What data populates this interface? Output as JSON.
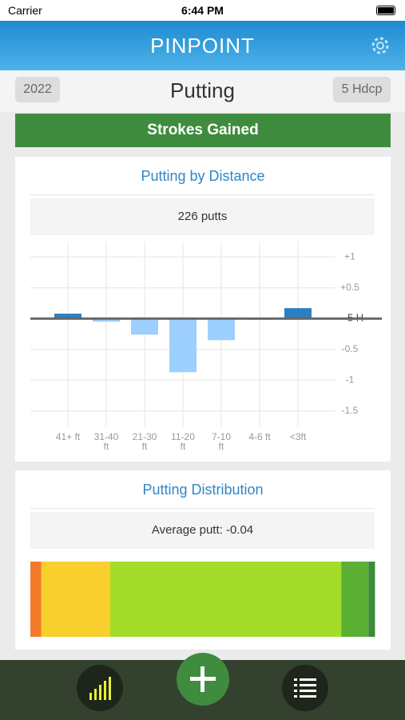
{
  "status_bar": {
    "carrier": "Carrier",
    "time": "6:44 PM"
  },
  "header": {
    "app_name": "PINPOINT"
  },
  "toolbar": {
    "year": "2022",
    "title": "Putting",
    "handicap": "5 Hdcp"
  },
  "banner": "Strokes Gained",
  "chart_data": [
    {
      "type": "bar",
      "title": "Putting by Distance",
      "subtitle": "226 putts",
      "categories": [
        "41+ ft",
        "31-40 ft",
        "21-30 ft",
        "11-20 ft",
        "7-10 ft",
        "4-6 ft",
        "<3ft"
      ],
      "values": [
        0.08,
        -0.05,
        -0.26,
        -0.87,
        -0.35,
        -0.02,
        0.17
      ],
      "color_positive": "#2b7fc2",
      "color_negative": "#9dcfff",
      "ylim": [
        -1.75,
        1.25
      ],
      "yticks": [
        {
          "value": 1,
          "label": "+1"
        },
        {
          "value": 0.5,
          "label": "+0.5"
        },
        {
          "value": 0,
          "label": "5 H"
        },
        {
          "value": -0.5,
          "label": "-0.5"
        },
        -1,
        -1.5
      ],
      "grid": true
    },
    {
      "type": "stacked_bar",
      "title": "Putting Distribution",
      "subtitle": "Average putt: -0.04",
      "values": [
        3.2,
        20.0,
        67.1,
        7.9,
        1.9
      ],
      "colors": [
        "#f47a2a",
        "#f8cf2c",
        "#a3dd2a",
        "#5bb033",
        "#3d8a3a"
      ],
      "xlim": [
        0,
        100
      ]
    }
  ]
}
